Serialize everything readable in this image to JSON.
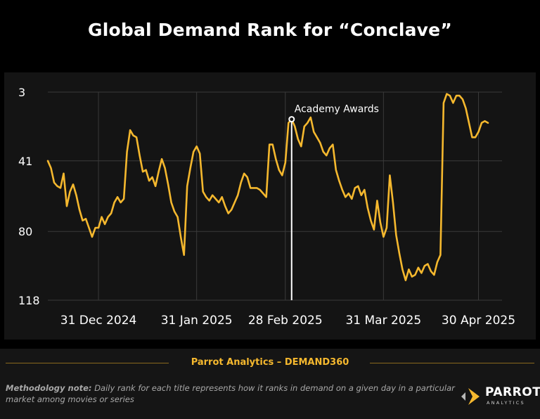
{
  "chart_data": {
    "type": "line",
    "title": "Global Demand Rank for “Conclave”",
    "y_inverted": true,
    "ylim": [
      3,
      118
    ],
    "yticks": [
      3,
      41,
      80,
      118
    ],
    "xticks": [
      "31 Dec 2024",
      "31 Jan 2025",
      "28 Feb 2025",
      "31 Mar 2025",
      "30 Apr 2025"
    ],
    "xtick_dates": [
      "2024-12-31",
      "2025-01-31",
      "2025-02-28",
      "2025-03-31",
      "2025-04-30"
    ],
    "x_range": [
      "2024-12-15",
      "2025-05-07"
    ],
    "grid": true,
    "line_color": "#f5b82e",
    "annotation": {
      "label": "Academy Awards",
      "date": "2025-03-02",
      "value": 18
    },
    "series": [
      {
        "points": [
          [
            "2024-12-15",
            41
          ],
          [
            "2024-12-16",
            45
          ],
          [
            "2024-12-17",
            53
          ],
          [
            "2024-12-18",
            55
          ],
          [
            "2024-12-19",
            56
          ],
          [
            "2024-12-20",
            48
          ],
          [
            "2024-12-21",
            66
          ],
          [
            "2024-12-22",
            58
          ],
          [
            "2024-12-23",
            54
          ],
          [
            "2024-12-24",
            60
          ],
          [
            "2024-12-25",
            68
          ],
          [
            "2024-12-26",
            74
          ],
          [
            "2024-12-27",
            73
          ],
          [
            "2024-12-28",
            78
          ],
          [
            "2024-12-29",
            83
          ],
          [
            "2024-12-30",
            78
          ],
          [
            "2024-12-31",
            78
          ],
          [
            "2025-01-01",
            72
          ],
          [
            "2025-01-02",
            76
          ],
          [
            "2025-01-03",
            72
          ],
          [
            "2025-01-04",
            70
          ],
          [
            "2025-01-05",
            64
          ],
          [
            "2025-01-06",
            61
          ],
          [
            "2025-01-07",
            64
          ],
          [
            "2025-01-08",
            62
          ],
          [
            "2025-01-09",
            36
          ],
          [
            "2025-01-10",
            24
          ],
          [
            "2025-01-11",
            27
          ],
          [
            "2025-01-12",
            28
          ],
          [
            "2025-01-13",
            38
          ],
          [
            "2025-01-14",
            47
          ],
          [
            "2025-01-15",
            46
          ],
          [
            "2025-01-16",
            52
          ],
          [
            "2025-01-17",
            50
          ],
          [
            "2025-01-18",
            55
          ],
          [
            "2025-01-19",
            47
          ],
          [
            "2025-01-20",
            40
          ],
          [
            "2025-01-21",
            45
          ],
          [
            "2025-01-22",
            54
          ],
          [
            "2025-01-23",
            64
          ],
          [
            "2025-01-24",
            69
          ],
          [
            "2025-01-25",
            72
          ],
          [
            "2025-01-26",
            83
          ],
          [
            "2025-01-27",
            93
          ],
          [
            "2025-01-28",
            55
          ],
          [
            "2025-01-29",
            45
          ],
          [
            "2025-01-30",
            36
          ],
          [
            "2025-01-31",
            33
          ],
          [
            "2025-02-01",
            37
          ],
          [
            "2025-02-02",
            58
          ],
          [
            "2025-02-03",
            61
          ],
          [
            "2025-02-04",
            63
          ],
          [
            "2025-02-05",
            60
          ],
          [
            "2025-02-06",
            62
          ],
          [
            "2025-02-07",
            64
          ],
          [
            "2025-02-08",
            61
          ],
          [
            "2025-02-09",
            66
          ],
          [
            "2025-02-10",
            70
          ],
          [
            "2025-02-11",
            68
          ],
          [
            "2025-02-12",
            64
          ],
          [
            "2025-02-13",
            60
          ],
          [
            "2025-02-14",
            53
          ],
          [
            "2025-02-15",
            48
          ],
          [
            "2025-02-16",
            50
          ],
          [
            "2025-02-17",
            56
          ],
          [
            "2025-02-18",
            56
          ],
          [
            "2025-02-19",
            56
          ],
          [
            "2025-02-20",
            57
          ],
          [
            "2025-02-21",
            59
          ],
          [
            "2025-02-22",
            61
          ],
          [
            "2025-02-23",
            32
          ],
          [
            "2025-02-24",
            32
          ],
          [
            "2025-02-25",
            40
          ],
          [
            "2025-02-26",
            46
          ],
          [
            "2025-02-27",
            49
          ],
          [
            "2025-02-28",
            42
          ],
          [
            "2025-03-01",
            20
          ],
          [
            "2025-03-02",
            18
          ],
          [
            "2025-03-03",
            22
          ],
          [
            "2025-03-04",
            29
          ],
          [
            "2025-03-05",
            33
          ],
          [
            "2025-03-06",
            22
          ],
          [
            "2025-03-07",
            20
          ],
          [
            "2025-03-08",
            17
          ],
          [
            "2025-03-09",
            25
          ],
          [
            "2025-03-10",
            28
          ],
          [
            "2025-03-11",
            31
          ],
          [
            "2025-03-12",
            36
          ],
          [
            "2025-03-13",
            38
          ],
          [
            "2025-03-14",
            34
          ],
          [
            "2025-03-15",
            32
          ],
          [
            "2025-03-16",
            46
          ],
          [
            "2025-03-17",
            52
          ],
          [
            "2025-03-18",
            57
          ],
          [
            "2025-03-19",
            61
          ],
          [
            "2025-03-20",
            59
          ],
          [
            "2025-03-21",
            62
          ],
          [
            "2025-03-22",
            56
          ],
          [
            "2025-03-23",
            55
          ],
          [
            "2025-03-24",
            60
          ],
          [
            "2025-03-25",
            57
          ],
          [
            "2025-03-26",
            67
          ],
          [
            "2025-03-27",
            74
          ],
          [
            "2025-03-28",
            79
          ],
          [
            "2025-03-29",
            63
          ],
          [
            "2025-03-30",
            75
          ],
          [
            "2025-03-31",
            83
          ],
          [
            "2025-04-01",
            78
          ],
          [
            "2025-04-02",
            49
          ],
          [
            "2025-04-03",
            64
          ],
          [
            "2025-04-04",
            82
          ],
          [
            "2025-04-05",
            92
          ],
          [
            "2025-04-06",
            101
          ],
          [
            "2025-04-07",
            107
          ],
          [
            "2025-04-08",
            101
          ],
          [
            "2025-04-09",
            105
          ],
          [
            "2025-04-10",
            104
          ],
          [
            "2025-04-11",
            100
          ],
          [
            "2025-04-12",
            103
          ],
          [
            "2025-04-13",
            99
          ],
          [
            "2025-04-14",
            98
          ],
          [
            "2025-04-15",
            102
          ],
          [
            "2025-04-16",
            104
          ],
          [
            "2025-04-17",
            97
          ],
          [
            "2025-04-18",
            93
          ],
          [
            "2025-04-19",
            9
          ],
          [
            "2025-04-20",
            4
          ],
          [
            "2025-04-21",
            5
          ],
          [
            "2025-04-22",
            9
          ],
          [
            "2025-04-23",
            5
          ],
          [
            "2025-04-24",
            5
          ],
          [
            "2025-04-25",
            7
          ],
          [
            "2025-04-26",
            12
          ],
          [
            "2025-04-27",
            20
          ],
          [
            "2025-04-28",
            28
          ],
          [
            "2025-04-29",
            28
          ],
          [
            "2025-04-30",
            25
          ],
          [
            "2025-05-01",
            20
          ],
          [
            "2025-05-02",
            19
          ],
          [
            "2025-05-03",
            20
          ]
        ]
      }
    ]
  },
  "footer": {
    "source": "Parrot Analytics – DEMAND360",
    "note_label": "Methodology note:",
    "note_text": "Daily rank for each title  represents how it ranks in demand on a given day in a particular market among movies or series"
  },
  "logo": {
    "word": "PARROT",
    "sub": "ANALYTICS"
  }
}
